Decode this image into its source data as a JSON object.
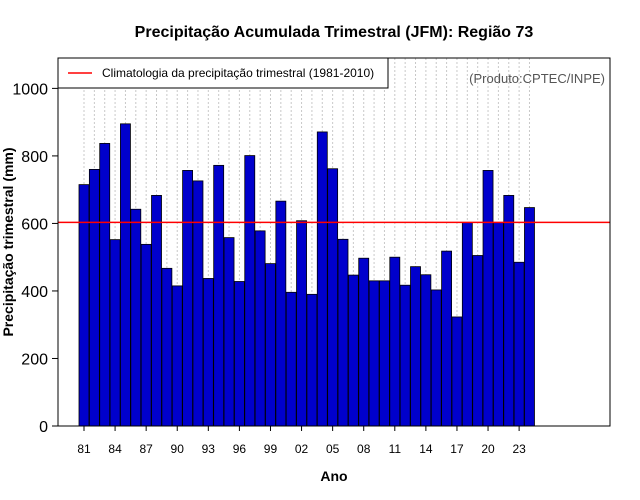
{
  "chart_data": {
    "type": "bar",
    "title": "Precipitação Acumulada Trimestral (JFM): Região 73",
    "xlabel": "Ano",
    "ylabel": "Precipitação trimestral (mm)",
    "credit": "(Produto:CPTEC/INPE)",
    "ylim": [
      0,
      1090
    ],
    "yticks": [
      0,
      200,
      400,
      600,
      800,
      1000
    ],
    "grid": "vertical dotted",
    "bar_color": "#0000CC",
    "climatology": {
      "label": "Climatologia da precipitação trimestral (1981-2010)",
      "value": 603,
      "color": "#FF0000"
    },
    "legend_position": "top-left",
    "x_tick_labels": [
      "81",
      "84",
      "87",
      "90",
      "93",
      "96",
      "99",
      "02",
      "05",
      "08",
      "11",
      "14",
      "17",
      "20",
      "23"
    ],
    "categories": [
      "1981",
      "1982",
      "1983",
      "1984",
      "1985",
      "1986",
      "1987",
      "1988",
      "1989",
      "1990",
      "1991",
      "1992",
      "1993",
      "1994",
      "1995",
      "1996",
      "1997",
      "1998",
      "1999",
      "2000",
      "2001",
      "2002",
      "2003",
      "2004",
      "2005",
      "2006",
      "2007",
      "2008",
      "2009",
      "2010",
      "2011",
      "2012",
      "2013",
      "2014",
      "2015",
      "2016",
      "2017",
      "2018",
      "2019",
      "2020",
      "2021",
      "2022",
      "2023",
      "2024"
    ],
    "values": [
      715,
      760,
      837,
      552,
      895,
      642,
      538,
      683,
      467,
      415,
      757,
      726,
      437,
      772,
      558,
      428,
      801,
      578,
      481,
      666,
      396,
      608,
      390,
      871,
      762,
      553,
      447,
      497,
      430,
      430,
      500,
      417,
      472,
      448,
      403,
      518,
      323,
      603,
      505,
      757,
      603,
      683,
      485,
      647
    ]
  }
}
